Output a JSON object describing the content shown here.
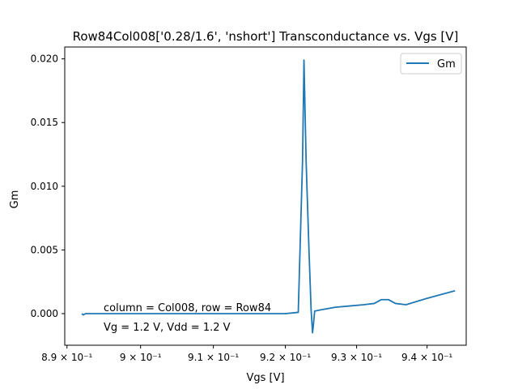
{
  "chart_data": {
    "type": "line",
    "title": "Row84Col008['0.28/1.6', 'nshort'] Transconductance vs. Vgs [V]",
    "xlabel": "Vgs [V]",
    "ylabel": "Gm",
    "xscale": "log",
    "xlim": [
      0.8897,
      0.9456
    ],
    "ylim": [
      -0.00248,
      0.02093
    ],
    "grid": false,
    "legend_position": "top-right",
    "x_ticks": [
      {
        "value": 0.89,
        "label": "8.9 × 10⁻¹"
      },
      {
        "value": 0.9,
        "label": "9 × 10⁻¹"
      },
      {
        "value": 0.91,
        "label": "9.1 × 10⁻¹"
      },
      {
        "value": 0.92,
        "label": "9.2 × 10⁻¹"
      },
      {
        "value": 0.93,
        "label": "9.3 × 10⁻¹"
      },
      {
        "value": 0.94,
        "label": "9.4 × 10⁻¹"
      }
    ],
    "y_ticks": [
      {
        "value": 0.0,
        "label": "0.000"
      },
      {
        "value": 0.005,
        "label": "0.005"
      },
      {
        "value": 0.01,
        "label": "0.010"
      },
      {
        "value": 0.015,
        "label": "0.015"
      },
      {
        "value": 0.02,
        "label": "0.020"
      }
    ],
    "series": [
      {
        "name": "Gm",
        "color": "#1f77b4",
        "x": [
          0.892,
          0.8922,
          0.8925,
          0.895,
          0.9,
          0.905,
          0.91,
          0.915,
          0.92,
          0.9218,
          0.9224,
          0.9226,
          0.9229,
          0.9233,
          0.9236,
          0.9238,
          0.9239,
          0.9241,
          0.925,
          0.927,
          0.929,
          0.931,
          0.9325,
          0.9335,
          0.9345,
          0.9355,
          0.937,
          0.94,
          0.944
        ],
        "y": [
          0.0,
          -0.0001,
          0.0,
          0.0,
          0.0,
          0.0,
          0.0,
          0.0,
          0.0,
          0.0001,
          0.012,
          0.0199,
          0.012,
          0.005,
          0.0003,
          -0.0015,
          -0.001,
          0.0002,
          0.0003,
          0.0005,
          0.0006,
          0.0007,
          0.0008,
          0.0011,
          0.0011,
          0.0008,
          0.0007,
          0.0012,
          0.0018
        ]
      }
    ],
    "annotations": [
      "column = Col008, row = Row84",
      "Vg = 1.2 V, Vdd = 1.2 V"
    ]
  }
}
